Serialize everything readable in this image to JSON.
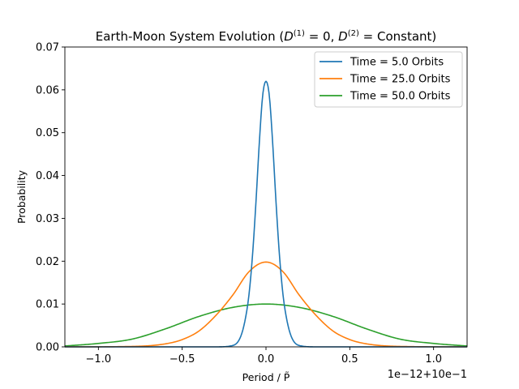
{
  "chart_data": {
    "type": "line",
    "title": "Earth-Moon System Evolution ($D^{(1)}=0, D^{(2)}=$Constant)",
    "title_display": {
      "prefix": "Earth-Moon System Evolution (",
      "d": "D",
      "sup1": "(1)",
      "mid1": " = 0, ",
      "sup2": "(2)",
      "mid2": " = Constant)"
    },
    "xlabel": "Period / P̃",
    "ylabel": "Probability",
    "offset_text": "1e−12+10e−1",
    "xlim": [
      -1.2,
      1.2
    ],
    "ylim": [
      0.0,
      0.07
    ],
    "xticks": [
      -1.0,
      -0.5,
      0.0,
      0.5,
      1.0
    ],
    "xtick_labels": [
      "−1.0",
      "−0.5",
      "0.0",
      "0.5",
      "1.0"
    ],
    "yticks": [
      0.0,
      0.01,
      0.02,
      0.03,
      0.04,
      0.05,
      0.06,
      0.07
    ],
    "ytick_labels": [
      "0.00",
      "0.01",
      "0.02",
      "0.03",
      "0.04",
      "0.05",
      "0.06",
      "0.07"
    ],
    "grid": false,
    "legend_position": "upper right",
    "series": [
      {
        "name": "Time = 5.0 Orbits",
        "color": "#1f77b4",
        "x": [
          -1.2,
          -0.5,
          -0.3,
          -0.2,
          -0.15,
          -0.12,
          -0.1,
          -0.08,
          -0.06,
          -0.04,
          -0.02,
          0.0,
          0.02,
          0.04,
          0.06,
          0.08,
          0.1,
          0.12,
          0.15,
          0.2,
          0.3,
          0.5,
          1.2
        ],
        "y": [
          0.0,
          0.0,
          0.0,
          0.0003,
          0.0025,
          0.0072,
          0.0127,
          0.0216,
          0.0337,
          0.0475,
          0.0586,
          0.062,
          0.0586,
          0.0475,
          0.0337,
          0.0216,
          0.0127,
          0.0072,
          0.0025,
          0.0003,
          0.0,
          0.0,
          0.0
        ]
      },
      {
        "name": "Time = 25.0 Orbits",
        "color": "#ff7f0e",
        "x": [
          -1.2,
          -0.8,
          -0.6,
          -0.5,
          -0.4,
          -0.3,
          -0.2,
          -0.1,
          0.0,
          0.1,
          0.2,
          0.3,
          0.4,
          0.5,
          0.6,
          0.8,
          1.2
        ],
        "y": [
          0.0,
          0.0001,
          0.0007,
          0.0017,
          0.0037,
          0.0073,
          0.012,
          0.0176,
          0.0198,
          0.0176,
          0.012,
          0.0073,
          0.0037,
          0.0017,
          0.0007,
          0.0001,
          0.0
        ],
        "smooth": true
      },
      {
        "name": "Time = 50.0 Orbits",
        "color": "#2ca02c",
        "x": [
          -1.2,
          -1.0,
          -0.8,
          -0.6,
          -0.4,
          -0.2,
          0.0,
          0.2,
          0.4,
          0.6,
          0.8,
          1.0,
          1.2
        ],
        "y": [
          0.0002,
          0.0008,
          0.0018,
          0.0042,
          0.0071,
          0.0092,
          0.01,
          0.0092,
          0.0071,
          0.0042,
          0.0018,
          0.0008,
          0.0002
        ],
        "smooth": true
      }
    ]
  }
}
